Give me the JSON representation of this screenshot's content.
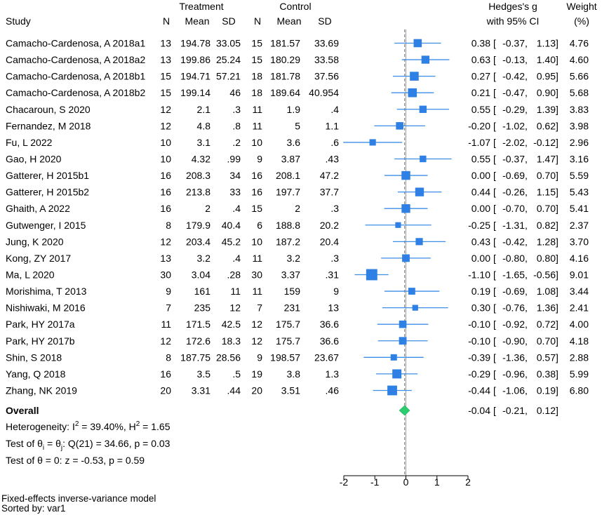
{
  "chart_data": {
    "type": "scatter",
    "headers": {
      "treatment": "Treatment",
      "control": "Control",
      "study": "Study",
      "n": "N",
      "mean": "Mean",
      "sd": "SD",
      "effect_line1": "Hedges's g",
      "effect_line2": "with 95% CI",
      "weight_line1": "Weight",
      "weight_line2": "(%)"
    },
    "ci_format": {
      "open": "[",
      "sep": ",",
      "close": "]"
    },
    "rows": [
      {
        "study": "Camacho-Cardenosa, A 2018a1",
        "t_n": "13",
        "t_mean": "194.78",
        "t_sd": "33.05",
        "c_n": "15",
        "c_mean": "181.57",
        "c_sd": "33.69",
        "g": "0.38",
        "lo": "-0.37",
        "hi": "1.13",
        "weight": "4.76"
      },
      {
        "study": "Camacho-Cardenosa, A 2018a2",
        "t_n": "13",
        "t_mean": "199.86",
        "t_sd": "25.24",
        "c_n": "15",
        "c_mean": "180.29",
        "c_sd": "33.58",
        "g": "0.63",
        "lo": "-0.13",
        "hi": "1.40",
        "weight": "4.60"
      },
      {
        "study": "Camacho-Cardenosa, A 2018b1",
        "t_n": "15",
        "t_mean": "194.71",
        "t_sd": "57.21",
        "c_n": "18",
        "c_mean": "181.78",
        "c_sd": "37.56",
        "g": "0.27",
        "lo": "-0.42",
        "hi": "0.95",
        "weight": "5.66"
      },
      {
        "study": "Camacho-Cardenosa, A 2018b2",
        "t_n": "15",
        "t_mean": "199.14",
        "t_sd": "46",
        "c_n": "18",
        "c_mean": "189.64",
        "c_sd": "40.954",
        "g": "0.21",
        "lo": "-0.47",
        "hi": "0.90",
        "weight": "5.68"
      },
      {
        "study": "Chacaroun, S 2020",
        "t_n": "12",
        "t_mean": "2.1",
        "t_sd": ".3",
        "c_n": "11",
        "c_mean": "1.9",
        "c_sd": ".4",
        "g": "0.55",
        "lo": "-0.29",
        "hi": "1.39",
        "weight": "3.83"
      },
      {
        "study": "Fernandez, M 2018",
        "t_n": "12",
        "t_mean": "4.8",
        "t_sd": ".8",
        "c_n": "11",
        "c_mean": "5",
        "c_sd": "1.1",
        "g": "-0.20",
        "lo": "-1.02",
        "hi": "0.62",
        "weight": "3.98"
      },
      {
        "study": "Fu, L 2022",
        "t_n": "10",
        "t_mean": "3.1",
        "t_sd": ".2",
        "c_n": "10",
        "c_mean": "3.6",
        "c_sd": ".6",
        "g": "-1.07",
        "lo": "-2.02",
        "hi": "-0.12",
        "weight": "2.96"
      },
      {
        "study": "Gao, H 2020",
        "t_n": "10",
        "t_mean": "4.32",
        "t_sd": ".99",
        "c_n": "9",
        "c_mean": "3.87",
        "c_sd": ".43",
        "g": "0.55",
        "lo": "-0.37",
        "hi": "1.47",
        "weight": "3.16"
      },
      {
        "study": "Gatterer, H 2015b1",
        "t_n": "16",
        "t_mean": "208.3",
        "t_sd": "34",
        "c_n": "16",
        "c_mean": "208.1",
        "c_sd": "47.2",
        "g": "0.00",
        "lo": "-0.69",
        "hi": "0.70",
        "weight": "5.59"
      },
      {
        "study": "Gatterer, H 2015b2",
        "t_n": "16",
        "t_mean": "213.8",
        "t_sd": "33",
        "c_n": "16",
        "c_mean": "197.7",
        "c_sd": "37.7",
        "g": "0.44",
        "lo": "-0.26",
        "hi": "1.15",
        "weight": "5.43"
      },
      {
        "study": "Ghaith, A 2022",
        "t_n": "16",
        "t_mean": "2",
        "t_sd": ".4",
        "c_n": "15",
        "c_mean": "2",
        "c_sd": ".3",
        "g": "0.00",
        "lo": "-0.70",
        "hi": "0.70",
        "weight": "5.41"
      },
      {
        "study": "Gutwenger, I 2015",
        "t_n": "8",
        "t_mean": "179.9",
        "t_sd": "40.4",
        "c_n": "6",
        "c_mean": "188.8",
        "c_sd": "20.2",
        "g": "-0.25",
        "lo": "-1.31",
        "hi": "0.82",
        "weight": "2.37"
      },
      {
        "study": "Jung, K 2020",
        "t_n": "12",
        "t_mean": "203.4",
        "t_sd": "45.2",
        "c_n": "10",
        "c_mean": "187.2",
        "c_sd": "20.4",
        "g": "0.43",
        "lo": "-0.42",
        "hi": "1.28",
        "weight": "3.70"
      },
      {
        "study": "Kong, ZY 2017",
        "t_n": "13",
        "t_mean": "3.2",
        "t_sd": ".4",
        "c_n": "11",
        "c_mean": "3.2",
        "c_sd": ".3",
        "g": "0.00",
        "lo": "-0.80",
        "hi": "0.80",
        "weight": "4.16"
      },
      {
        "study": "Ma, L 2020",
        "t_n": "30",
        "t_mean": "3.04",
        "t_sd": ".28",
        "c_n": "30",
        "c_mean": "3.37",
        "c_sd": ".31",
        "g": "-1.10",
        "lo": "-1.65",
        "hi": "-0.56",
        "weight": "9.01"
      },
      {
        "study": "Morishima, T 2013",
        "t_n": "9",
        "t_mean": "161",
        "t_sd": "11",
        "c_n": "11",
        "c_mean": "159",
        "c_sd": "9",
        "g": "0.19",
        "lo": "-0.69",
        "hi": "1.08",
        "weight": "3.44"
      },
      {
        "study": "Nishiwaki, M 2016",
        "t_n": "7",
        "t_mean": "235",
        "t_sd": "12",
        "c_n": "7",
        "c_mean": "231",
        "c_sd": "13",
        "g": "0.30",
        "lo": "-0.76",
        "hi": "1.36",
        "weight": "2.41"
      },
      {
        "study": "Park, HY 2017a",
        "t_n": "11",
        "t_mean": "171.5",
        "t_sd": "42.5",
        "c_n": "12",
        "c_mean": "175.7",
        "c_sd": "36.6",
        "g": "-0.10",
        "lo": "-0.92",
        "hi": "0.72",
        "weight": "4.00"
      },
      {
        "study": "Park, HY 2017b",
        "t_n": "12",
        "t_mean": "172.6",
        "t_sd": "18.3",
        "c_n": "12",
        "c_mean": "175.7",
        "c_sd": "36.6",
        "g": "-0.10",
        "lo": "-0.90",
        "hi": "0.70",
        "weight": "4.18"
      },
      {
        "study": "Shin, S 2018",
        "t_n": "8",
        "t_mean": "187.75",
        "t_sd": "28.56",
        "c_n": "9",
        "c_mean": "198.57",
        "c_sd": "23.67",
        "g": "-0.39",
        "lo": "-1.36",
        "hi": "0.57",
        "weight": "2.88"
      },
      {
        "study": "Yang, Q 2018",
        "t_n": "16",
        "t_mean": "3.5",
        "t_sd": ".5",
        "c_n": "19",
        "c_mean": "3.8",
        "c_sd": "1.3",
        "g": "-0.29",
        "lo": "-0.96",
        "hi": "0.38",
        "weight": "5.99"
      },
      {
        "study": "Zhang, NK 2019",
        "t_n": "20",
        "t_mean": "3.31",
        "t_sd": ".44",
        "c_n": "20",
        "c_mean": "3.51",
        "c_sd": ".46",
        "g": "-0.44",
        "lo": "-1.06",
        "hi": "0.19",
        "weight": "6.80"
      }
    ],
    "overall": {
      "label": "Overall",
      "g": "-0.04",
      "lo": "-0.21",
      "hi": "0.12"
    },
    "stats": {
      "heterogeneity": {
        "a": "Heterogeneity: I",
        "sup1": "2",
        "b": " = 39.40%, H",
        "sup2": "2",
        "c": " = 1.65"
      },
      "homogeneity_test": {
        "a": "Test of θ",
        "sub1": "i",
        "b": " = θ",
        "sub2": "j",
        "c": ": Q(21) = 34.66, p = 0.03"
      },
      "zero_test": "Test of θ = 0: z = -0.53, p = 0.59"
    },
    "x_ticks": [
      -2,
      -1,
      0,
      1,
      2
    ],
    "xlim": [
      -2,
      2
    ]
  },
  "footer": {
    "model": "Fixed-effects inverse-variance model",
    "sorted": "Sorted by: var1"
  },
  "colors": {
    "square": "#2f80e4",
    "ci_line": "#3d8ee8",
    "diamond": "#2ecc71",
    "diamond_edge": "#25b862",
    "null_line": "#a0a0a0",
    "overall_line": "#6e6e6e",
    "axis": "#000000"
  }
}
